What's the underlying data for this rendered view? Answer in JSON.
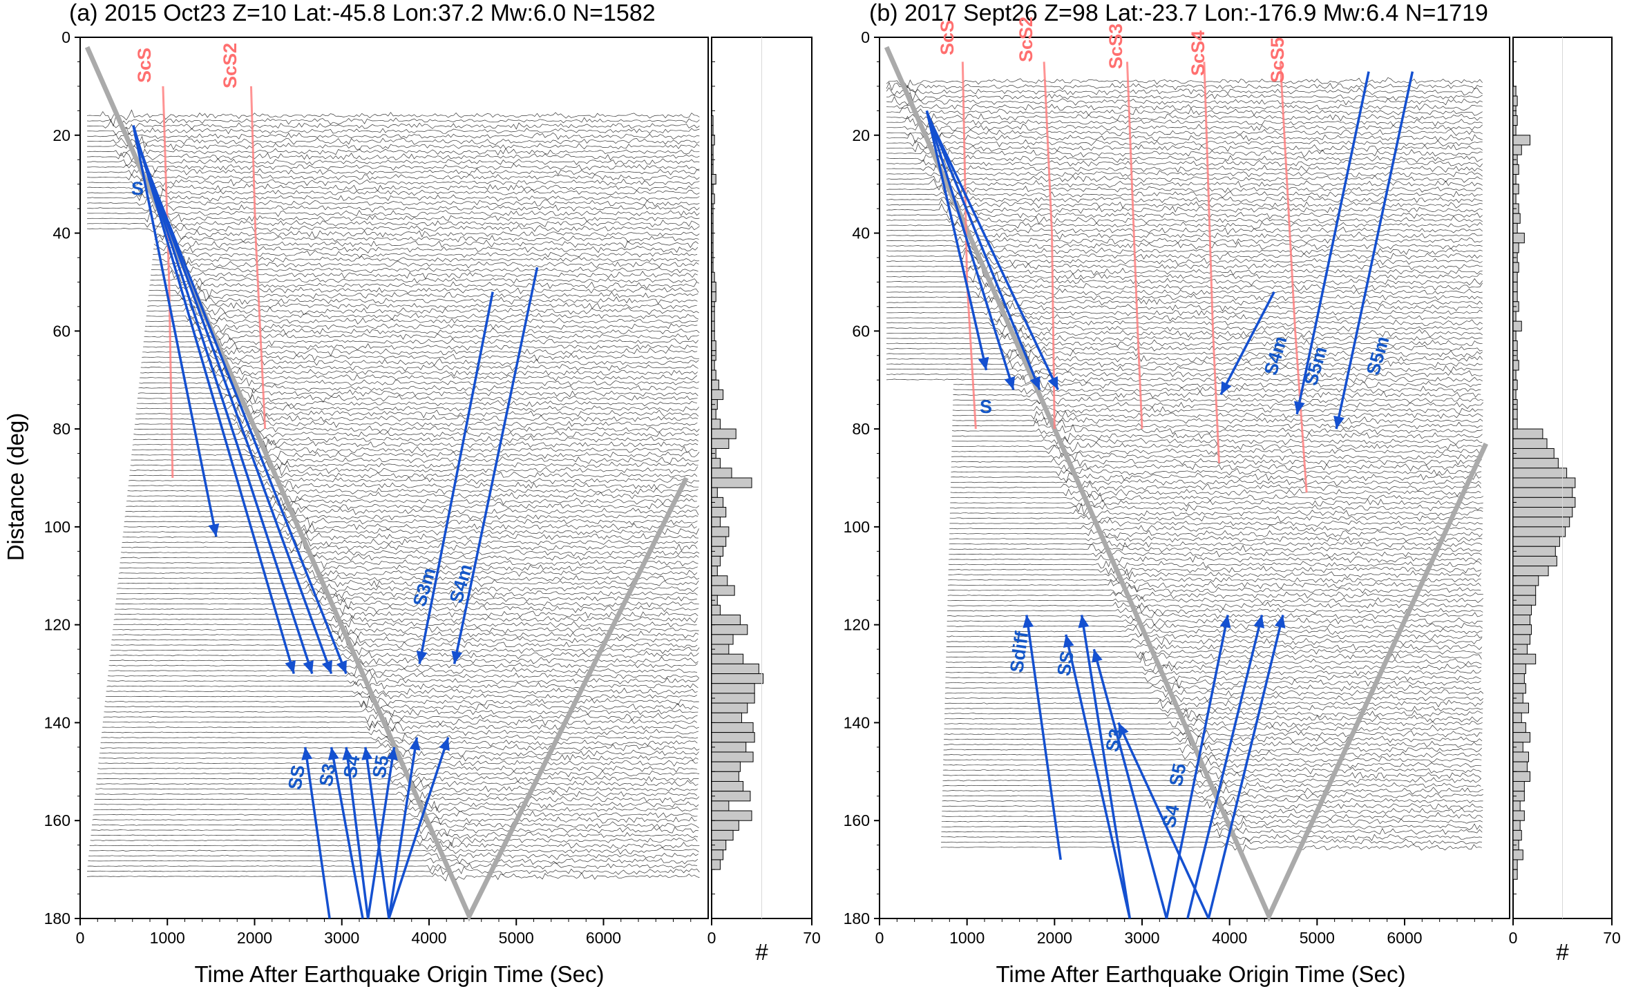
{
  "chart_data": [
    {
      "type": "record-section",
      "title": "(a) 2015 Oct23  Z=10  Lat:-45.8 Lon:37.2 Mw:6.0 N=1582",
      "xlabel": "Time After Earthquake Origin Time (Sec)",
      "ylabel": "Distance (deg)",
      "xlim": [
        0,
        7200
      ],
      "ylim": [
        0,
        180
      ],
      "y_inverted": true,
      "x_ticks": [
        0,
        1000,
        2000,
        3000,
        4000,
        5000,
        6000
      ],
      "y_ticks": [
        0,
        20,
        40,
        60,
        80,
        100,
        120,
        140,
        160,
        180
      ],
      "trace_range_deg": [
        16,
        172
      ],
      "reference_curves": [
        {
          "kind": "gray",
          "points": [
            [
              80,
              2
            ],
            [
              4460,
              179.5
            ],
            [
              6950,
              90
            ]
          ]
        }
      ],
      "red_lines": [
        {
          "label": "ScS",
          "points": [
            [
              950,
              10
            ],
            [
              1020,
              50
            ],
            [
              1060,
              90
            ]
          ]
        },
        {
          "label": "ScS2",
          "points": [
            [
              1960,
              10
            ],
            [
              2010,
              40
            ],
            [
              2120,
              80
            ]
          ]
        }
      ],
      "blue_arrows": [
        {
          "from": [
            610,
            18
          ],
          "to": [
            1560,
            102
          ]
        },
        {
          "from": [
            610,
            18
          ],
          "to": [
            2450,
            130
          ]
        },
        {
          "from": [
            620,
            19
          ],
          "to": [
            2660,
            130
          ]
        },
        {
          "from": [
            630,
            20
          ],
          "to": [
            2880,
            130
          ]
        },
        {
          "from": [
            640,
            21
          ],
          "to": [
            3050,
            130
          ]
        },
        {
          "from": [
            5240,
            47
          ],
          "to": [
            4290,
            128
          ]
        },
        {
          "from": [
            4730,
            52
          ],
          "to": [
            3890,
            128
          ]
        },
        {
          "from": [
            2860,
            180
          ],
          "to": [
            2580,
            145
          ]
        },
        {
          "from": [
            3240,
            180
          ],
          "to": [
            2880,
            145
          ]
        },
        {
          "from": [
            3300,
            180
          ],
          "to": [
            3600,
            145
          ]
        },
        {
          "from": [
            3300,
            180
          ],
          "to": [
            3050,
            145
          ]
        },
        {
          "from": [
            3540,
            180
          ],
          "to": [
            3270,
            145
          ]
        },
        {
          "from": [
            3540,
            180
          ],
          "to": [
            3860,
            143
          ]
        },
        {
          "from": [
            3540,
            180
          ],
          "to": [
            4220,
            143
          ]
        }
      ],
      "phase_labels": [
        "ScS",
        "ScS2",
        "S",
        "S3m",
        "S4m",
        "SS",
        "S3",
        "S4",
        "S5"
      ],
      "histogram": {
        "xlabel": "#",
        "x_ticks": [
          0,
          70
        ],
        "xlim": [
          0,
          70
        ],
        "bin_deg": 2,
        "counts": [
          0,
          0,
          0,
          0,
          0,
          0,
          0,
          0,
          1,
          1,
          2,
          1,
          1,
          1,
          3,
          1,
          2,
          1,
          1,
          1,
          1,
          1,
          1,
          1,
          2,
          3,
          3,
          2,
          2,
          2,
          2,
          3,
          3,
          2,
          3,
          5,
          8,
          4,
          3,
          6,
          17,
          12,
          3,
          6,
          14,
          28,
          4,
          8,
          10,
          6,
          12,
          10,
          8,
          6,
          4,
          11,
          16,
          4,
          6,
          20,
          25,
          15,
          12,
          22,
          33,
          36,
          30,
          30,
          25,
          21,
          29,
          30,
          24,
          29,
          20,
          19,
          22,
          27,
          12,
          28,
          19,
          15,
          10,
          8,
          6,
          0,
          0,
          0,
          0,
          0
        ]
      }
    },
    {
      "type": "record-section",
      "title": "(b) 2017 Sept26  Z=98  Lat:-23.7 Lon:-176.9 Mw:6.4 N=1719",
      "xlabel": "Time After Earthquake Origin Time (Sec)",
      "ylabel": "",
      "xlim": [
        0,
        7200
      ],
      "ylim": [
        0,
        180
      ],
      "y_inverted": true,
      "x_ticks": [
        0,
        1000,
        2000,
        3000,
        4000,
        5000,
        6000
      ],
      "y_ticks": [
        0,
        20,
        40,
        60,
        80,
        100,
        120,
        140,
        160,
        180
      ],
      "trace_range_deg": [
        9,
        166
      ],
      "reference_curves": [
        {
          "kind": "gray",
          "points": [
            [
              80,
              2
            ],
            [
              4450,
              179.5
            ],
            [
              6930,
              83
            ]
          ]
        }
      ],
      "red_lines": [
        {
          "label": "ScS",
          "points": [
            [
              950,
              5
            ],
            [
              1000,
              50
            ],
            [
              1100,
              80
            ]
          ]
        },
        {
          "label": "ScS2",
          "points": [
            [
              1880,
              5
            ],
            [
              1970,
              40
            ],
            [
              2000,
              80
            ]
          ]
        },
        {
          "label": "ScS3",
          "points": [
            [
              2830,
              5
            ],
            [
              2950,
              60
            ],
            [
              3000,
              80
            ]
          ]
        },
        {
          "label": "ScS4",
          "points": [
            [
              3710,
              5
            ],
            [
              3810,
              60
            ],
            [
              3880,
              87
            ]
          ]
        },
        {
          "label": "ScS5",
          "points": [
            [
              4580,
              5
            ],
            [
              4750,
              60
            ],
            [
              4880,
              93
            ]
          ]
        }
      ],
      "blue_arrows": [
        {
          "from": [
            540,
            15
          ],
          "to": [
            1220,
            68
          ]
        },
        {
          "from": [
            540,
            15
          ],
          "to": [
            1530,
            72
          ]
        },
        {
          "from": [
            560,
            16
          ],
          "to": [
            1830,
            72
          ]
        },
        {
          "from": [
            580,
            17
          ],
          "to": [
            2040,
            72
          ]
        },
        {
          "from": [
            6090,
            7
          ],
          "to": [
            5220,
            80
          ]
        },
        {
          "from": [
            5590,
            7
          ],
          "to": [
            4770,
            77
          ]
        },
        {
          "from": [
            4510,
            52
          ],
          "to": [
            3900,
            73
          ]
        },
        {
          "from": [
            2070,
            168
          ],
          "to": [
            1680,
            118
          ]
        },
        {
          "from": [
            2860,
            180
          ],
          "to": [
            2310,
            118
          ]
        },
        {
          "from": [
            2860,
            180
          ],
          "to": [
            2130,
            122
          ]
        },
        {
          "from": [
            3280,
            180
          ],
          "to": [
            2450,
            125
          ]
        },
        {
          "from": [
            3280,
            180
          ],
          "to": [
            3980,
            118
          ]
        },
        {
          "from": [
            3520,
            180
          ],
          "to": [
            4370,
            118
          ]
        },
        {
          "from": [
            3760,
            180
          ],
          "to": [
            4610,
            118
          ]
        },
        {
          "from": [
            3760,
            180
          ],
          "to": [
            2730,
            140
          ]
        }
      ],
      "phase_labels": [
        "ScS",
        "ScS2",
        "ScS3",
        "ScS4",
        "ScS5",
        "S",
        "S4m",
        "S5m",
        "S5m",
        "Sdiff",
        "SS",
        "S3",
        "S5",
        "S4"
      ],
      "histogram": {
        "xlabel": "#",
        "x_ticks": [
          0,
          70
        ],
        "xlim": [
          0,
          70
        ],
        "bin_deg": 2,
        "counts": [
          0,
          0,
          0,
          0,
          0,
          2,
          3,
          2,
          3,
          2,
          12,
          6,
          3,
          4,
          2,
          4,
          2,
          4,
          5,
          3,
          8,
          4,
          3,
          4,
          3,
          3,
          3,
          4,
          2,
          6,
          2,
          3,
          3,
          4,
          2,
          3,
          2,
          3,
          3,
          3,
          21,
          24,
          29,
          32,
          38,
          44,
          42,
          44,
          42,
          40,
          37,
          33,
          30,
          31,
          25,
          18,
          16,
          16,
          13,
          12,
          13,
          12,
          10,
          16,
          9,
          8,
          9,
          7,
          11,
          6,
          9,
          12,
          7,
          11,
          10,
          12,
          8,
          8,
          5,
          8,
          5,
          6,
          4,
          7,
          3,
          3,
          0,
          0,
          0,
          0
        ]
      }
    }
  ],
  "ui": {
    "hist_label": "#"
  }
}
